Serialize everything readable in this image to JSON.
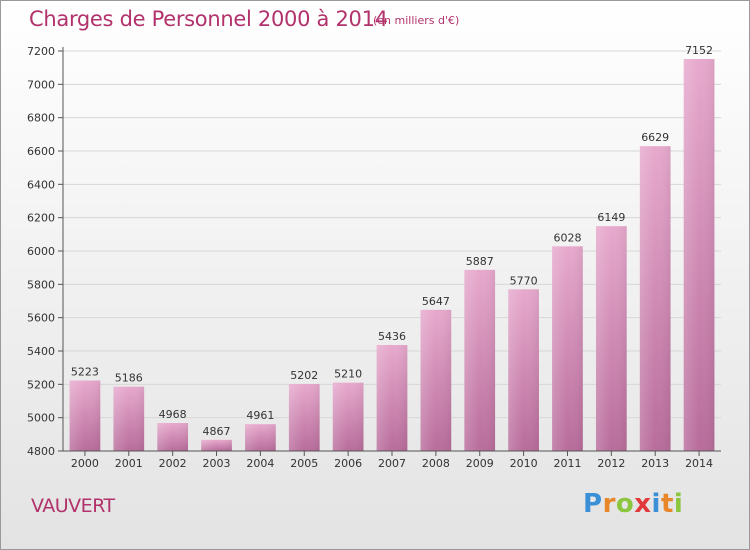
{
  "header": {
    "title": "Charges de Personnel 2000 à 2014",
    "subtitle": "(en milliers d'€)"
  },
  "footer": {
    "commune": "VAUVERT",
    "logo_letters": [
      "P",
      "r",
      "o",
      "x",
      "i",
      "t",
      "i"
    ],
    "logo_colors": [
      "#3a8fd6",
      "#e8862a",
      "#8cc63f",
      "#e23a3a",
      "#3a8fd6",
      "#e8862a",
      "#8cc63f"
    ]
  },
  "colors": {
    "bar_top": "#e7a9cd",
    "bar_bottom": "#b86c9b",
    "grid": "#d7d7d7",
    "axis_text": "#333333"
  },
  "chart_data": {
    "type": "bar",
    "title": "Charges de Personnel 2000 à 2014",
    "subtitle": "(en milliers d'€)",
    "categories": [
      "2000",
      "2001",
      "2002",
      "2003",
      "2004",
      "2005",
      "2006",
      "2007",
      "2008",
      "2009",
      "2010",
      "2011",
      "2012",
      "2013",
      "2014"
    ],
    "values": [
      5223,
      5186,
      4968,
      4867,
      4961,
      5202,
      5210,
      5436,
      5647,
      5887,
      5770,
      6028,
      6149,
      6629,
      7152
    ],
    "ylim": [
      4800,
      7200
    ],
    "yticks": [
      4800,
      5000,
      5200,
      5400,
      5600,
      5800,
      6000,
      6200,
      6400,
      6600,
      6800,
      7000,
      7200
    ],
    "grid": true
  }
}
